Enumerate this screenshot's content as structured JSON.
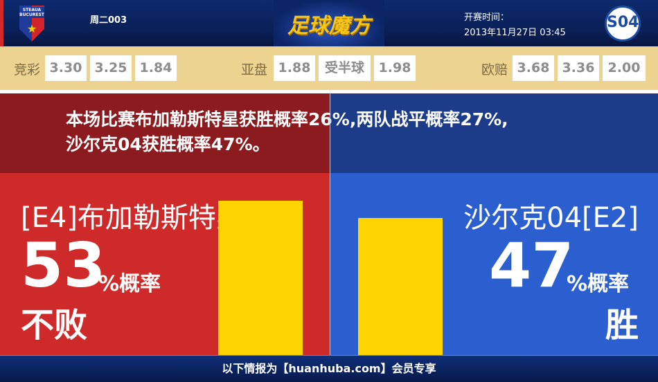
{
  "header": {
    "match_code": "周二003",
    "brand": "足球魔方",
    "kickoff_label": "开赛时间：",
    "kickoff_time": "2013年11月27日 03:45",
    "home_logo_text": "STEAUA BUCURESTI",
    "away_logo_text": "S04"
  },
  "odds": {
    "jingcai": {
      "label": "竞彩",
      "values": [
        "3.30",
        "3.25",
        "1.84"
      ]
    },
    "asian": {
      "label": "亚盘",
      "values": [
        "1.88",
        "受半球",
        "1.98"
      ]
    },
    "european": {
      "label": "欧赔",
      "values": [
        "3.68",
        "3.36",
        "2.00"
      ]
    }
  },
  "message": {
    "line1": "本场比赛布加勒斯特星获胜概率26%,两队战平概率27%,",
    "line2": "沙尔克04获胜概率47%。"
  },
  "home": {
    "team": "[E4]布加勒斯特星",
    "percent": "53",
    "unit": "%概率",
    "result": "不败",
    "probability": 53
  },
  "away": {
    "team": "沙尔克04[E2]",
    "percent": "47",
    "unit": "%概率",
    "result": "胜",
    "probability": 47
  },
  "colors": {
    "home": "#cf2a2a",
    "away": "#2b5fcf",
    "bar": "#ffd400",
    "odds_bg": "#ecd38f"
  },
  "footer": {
    "text": "以下情报为【huanhuba.com】会员专享"
  }
}
